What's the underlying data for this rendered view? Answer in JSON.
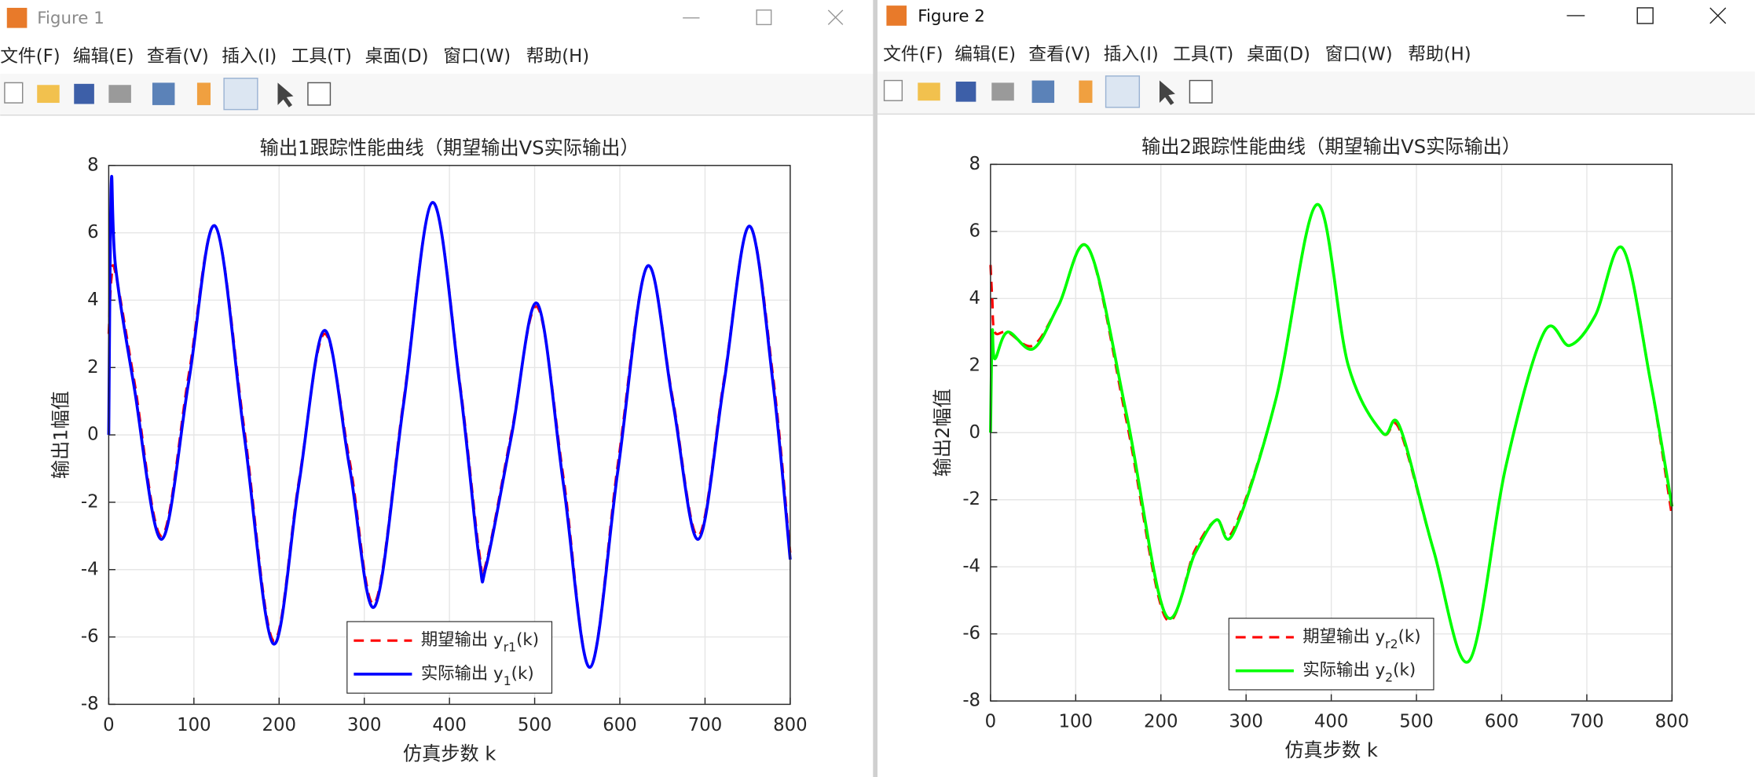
{
  "windows": [
    {
      "title": "Figure 1",
      "menu": [
        "文件(F)",
        "编辑(E)",
        "查看(V)",
        "插入(I)",
        "工具(T)",
        "桌面(D)",
        "窗口(W)",
        "帮助(H)"
      ]
    },
    {
      "title": "Figure 2",
      "menu": [
        "文件(F)",
        "编辑(E)",
        "查看(V)",
        "插入(I)",
        "工具(T)",
        "桌面(D)",
        "窗口(W)",
        "帮助(H)"
      ]
    }
  ],
  "chart_data": [
    {
      "type": "line",
      "title": "输出1跟踪性能曲线（期望输出VS实际输出）",
      "xlabel": "仿真步数 k",
      "ylabel": "输出1幅值",
      "x": [
        0,
        3,
        8,
        30,
        62,
        94,
        125,
        159,
        193,
        223,
        253,
        283,
        312,
        346,
        380,
        412,
        435,
        443,
        473,
        503,
        534,
        565,
        598,
        632,
        662,
        692,
        722,
        752,
        780,
        800
      ],
      "series": [
        {
          "name": "期望输出 y",
          "subscript": "r1",
          "suffix": "(k)",
          "color": "#ff0000",
          "dash": true,
          "values": [
            3.0,
            4.6,
            4.8,
            1.6,
            -3.0,
            1.8,
            6.2,
            0.2,
            -6.1,
            -1.4,
            3.0,
            -0.8,
            -5.0,
            1.0,
            6.9,
            1.6,
            -3.5,
            -3.8,
            0.1,
            3.8,
            -1.3,
            -6.9,
            -0.8,
            5.0,
            1.1,
            -3.0,
            1.6,
            6.2,
            1.7,
            -3.5
          ]
        },
        {
          "name": "实际输出 y",
          "subscript": "1",
          "suffix": "(k)",
          "color": "#0000ff",
          "dash": false,
          "values": [
            0.0,
            7.5,
            5.0,
            1.4,
            -3.1,
            1.6,
            6.2,
            0.0,
            -6.2,
            -1.5,
            3.1,
            -1.0,
            -5.1,
            0.9,
            6.9,
            1.5,
            -3.7,
            -3.9,
            0.0,
            3.9,
            -1.5,
            -6.9,
            -1.0,
            5.0,
            1.0,
            -3.1,
            1.5,
            6.2,
            1.5,
            -3.7
          ]
        }
      ],
      "xlim": [
        0,
        800
      ],
      "ylim": [
        -8,
        8
      ],
      "xticks": [
        0,
        100,
        200,
        300,
        400,
        500,
        600,
        700,
        800
      ],
      "yticks": [
        -8,
        -6,
        -4,
        -2,
        0,
        2,
        4,
        6,
        8
      ],
      "grid": true,
      "legend": "lower center"
    },
    {
      "type": "line",
      "title": "输出2跟踪性能曲线（期望输出VS实际输出）",
      "xlabel": "仿真步数 k",
      "ylabel": "输出2幅值",
      "x": [
        0,
        2,
        5,
        20,
        50,
        80,
        115,
        160,
        205,
        240,
        265,
        285,
        335,
        383,
        420,
        460,
        480,
        520,
        562,
        605,
        650,
        680,
        710,
        742,
        775,
        800
      ],
      "series": [
        {
          "name": "期望输出 y",
          "subscript": "r2",
          "suffix": "(k)",
          "color": "#ff0000",
          "dash": true,
          "values": [
            5.0,
            4.0,
            3.0,
            3.0,
            2.6,
            3.8,
            5.5,
            0.3,
            -5.5,
            -3.5,
            -2.6,
            -2.9,
            1.0,
            6.8,
            2.0,
            0.0,
            0.1,
            -3.5,
            -6.8,
            -1.0,
            3.0,
            2.6,
            3.5,
            5.5,
            1.5,
            -2.5
          ]
        },
        {
          "name": "实际输出 y",
          "subscript": "2",
          "suffix": "(k)",
          "color": "#00ff00",
          "dash": false,
          "values": [
            0.0,
            3.0,
            2.2,
            3.0,
            2.5,
            3.8,
            5.5,
            0.5,
            -5.4,
            -3.6,
            -2.6,
            -3.0,
            1.0,
            6.8,
            2.0,
            0.0,
            0.2,
            -3.5,
            -6.8,
            -1.0,
            3.0,
            2.6,
            3.5,
            5.5,
            1.5,
            -2.2
          ]
        }
      ],
      "xlim": [
        0,
        800
      ],
      "ylim": [
        -8,
        8
      ],
      "xticks": [
        0,
        100,
        200,
        300,
        400,
        500,
        600,
        700,
        800
      ],
      "yticks": [
        -8,
        -6,
        -4,
        -2,
        0,
        2,
        4,
        6,
        8
      ],
      "grid": true,
      "legend": "lower center"
    }
  ]
}
